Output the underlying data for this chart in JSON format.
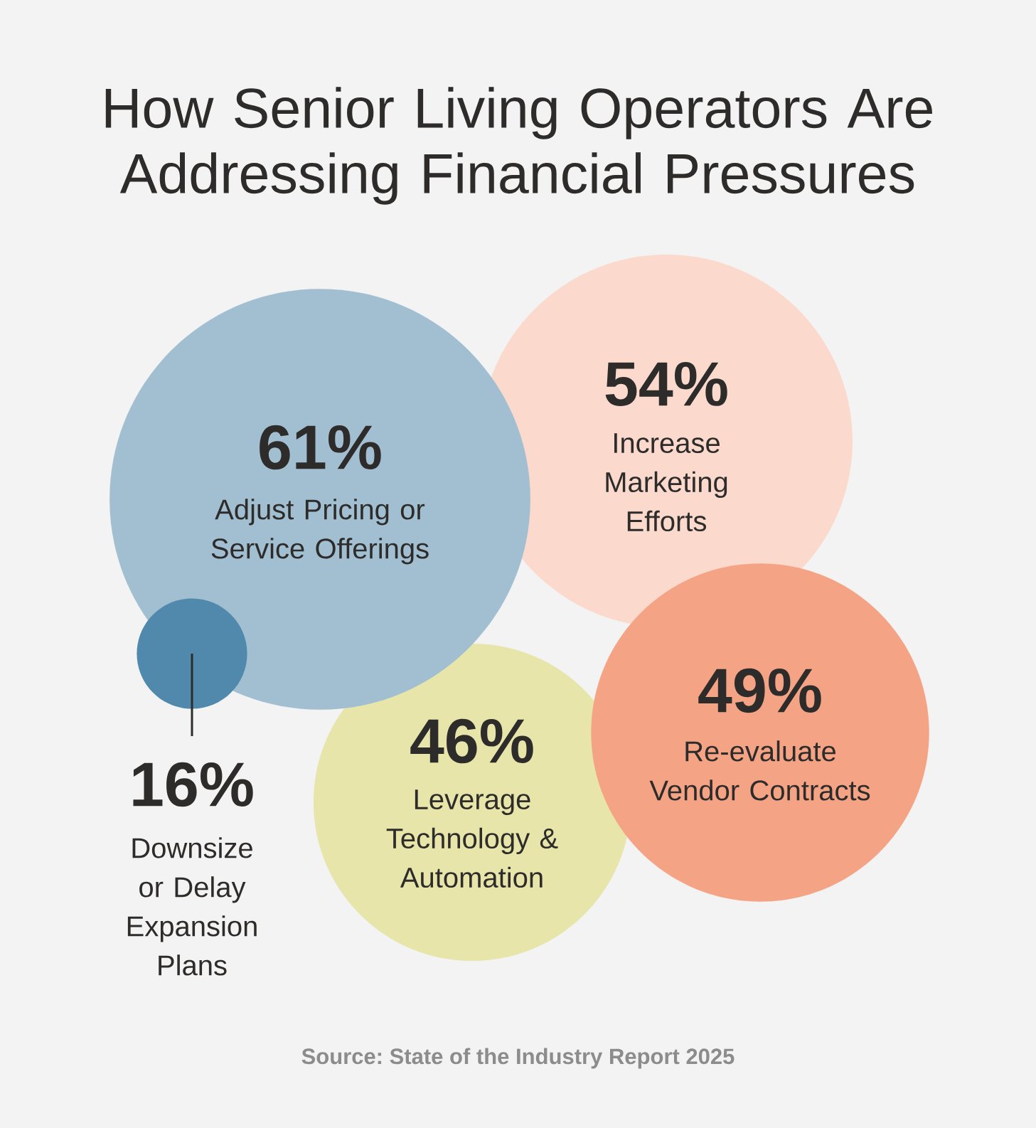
{
  "chart_data": {
    "type": "other",
    "title": "How Senior Living Operators Are Addressing Financial Pressures",
    "categories": [
      "Adjust Pricing or Service Offerings",
      "Increase Marketing Efforts",
      "Re-evaluate Vendor Contracts",
      "Leverage Technology & Automation",
      "Downsize or Delay Expansion Plans"
    ],
    "values": [
      61,
      54,
      49,
      46,
      16
    ],
    "value_labels": [
      "61%",
      "54%",
      "49%",
      "46%",
      "16%"
    ],
    "colors": [
      "#a2bfd2",
      "#fbdacd",
      "#f5a385",
      "#e7e5aa",
      "#5189ad"
    ],
    "annotations": [
      "Source: State of the Industry Report 2025"
    ]
  }
}
